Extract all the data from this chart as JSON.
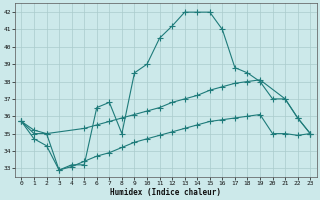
{
  "xlabel": "Humidex (Indice chaleur)",
  "xlim": [
    -0.5,
    23.5
  ],
  "ylim": [
    32.5,
    42.5
  ],
  "yticks": [
    33,
    34,
    35,
    36,
    37,
    38,
    39,
    40,
    41,
    42
  ],
  "xticks": [
    0,
    1,
    2,
    3,
    4,
    5,
    6,
    7,
    8,
    9,
    10,
    11,
    12,
    13,
    14,
    15,
    16,
    17,
    18,
    19,
    20,
    21,
    22,
    23
  ],
  "bg_color": "#cce9ea",
  "grid_color": "#aacccc",
  "line_color": "#1e7b7a",
  "line1_x": [
    0,
    1,
    2,
    3,
    4,
    5,
    6,
    7,
    8,
    9,
    10,
    11,
    12,
    13,
    14,
    15,
    16,
    17,
    18,
    19,
    20,
    21,
    22,
    23
  ],
  "line1_y": [
    35.7,
    35.0,
    35.0,
    32.9,
    33.2,
    33.2,
    36.5,
    36.8,
    35.0,
    38.5,
    39.0,
    40.5,
    41.2,
    42.0,
    42.0,
    42.0,
    41.0,
    38.8,
    38.5,
    38.0,
    37.0,
    37.0,
    35.9,
    35.0
  ],
  "line2_x": [
    0,
    1,
    2,
    5,
    6,
    7,
    8,
    9,
    10,
    11,
    12,
    13,
    14,
    15,
    16,
    17,
    18,
    19,
    21,
    22,
    23
  ],
  "line2_y": [
    35.7,
    35.2,
    35.0,
    35.3,
    35.5,
    35.7,
    35.9,
    36.1,
    36.3,
    36.5,
    36.8,
    37.0,
    37.2,
    37.5,
    37.7,
    37.9,
    38.0,
    38.1,
    37.0,
    35.9,
    35.0
  ],
  "line3_x": [
    0,
    1,
    2,
    3,
    4,
    5,
    6,
    7,
    8,
    9,
    10,
    11,
    12,
    13,
    14,
    15,
    16,
    17,
    18,
    19,
    20,
    21,
    22,
    23
  ],
  "line3_y": [
    35.7,
    34.7,
    34.3,
    32.9,
    33.1,
    33.4,
    33.7,
    33.9,
    34.2,
    34.5,
    34.7,
    34.9,
    35.1,
    35.3,
    35.5,
    35.7,
    35.8,
    35.9,
    36.0,
    36.1,
    35.0,
    35.0,
    34.9,
    35.0
  ],
  "marker": "+",
  "markersize": 4,
  "linewidth": 0.8
}
